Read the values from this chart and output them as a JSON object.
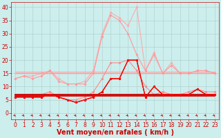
{
  "x": [
    0,
    1,
    2,
    3,
    4,
    5,
    6,
    7,
    8,
    9,
    10,
    11,
    12,
    13,
    14,
    15,
    16,
    17,
    18,
    19,
    20,
    21,
    22,
    23
  ],
  "line_configs": [
    {
      "y": [
        13,
        14,
        14,
        15,
        16,
        13,
        11,
        11,
        12,
        16,
        30,
        38,
        36,
        33,
        40,
        16,
        23,
        15,
        19,
        15,
        15,
        16,
        16,
        15
      ],
      "color": "#ffaaaa",
      "lw": 0.8,
      "marker": "o",
      "ms": 2.0,
      "zorder": 2
    },
    {
      "y": [
        15.5,
        15.5,
        15.5,
        15.5,
        15.5,
        15.5,
        15.5,
        15.5,
        15.5,
        15.5,
        15.5,
        15.5,
        15.5,
        15.5,
        15.5,
        15.5,
        15.5,
        15.5,
        15.5,
        15.5,
        15.5,
        15.5,
        15.5,
        15.5
      ],
      "color": "#ffaaaa",
      "lw": 1.0,
      "marker": null,
      "ms": 0,
      "zorder": 2
    },
    {
      "y": [
        13,
        14,
        13,
        14,
        16,
        12,
        11,
        11,
        11,
        15,
        29,
        37,
        35,
        30,
        22,
        16,
        22,
        15,
        18,
        15,
        15,
        16,
        16,
        15
      ],
      "color": "#ff9999",
      "lw": 0.8,
      "marker": "o",
      "ms": 2.0,
      "zorder": 3
    },
    {
      "y": [
        15,
        15,
        15,
        15,
        15,
        15,
        15,
        15,
        15,
        15,
        15,
        15,
        15,
        15,
        15,
        15,
        15,
        15,
        15,
        15,
        15,
        15,
        15,
        15
      ],
      "color": "#ff9999",
      "lw": 1.0,
      "marker": null,
      "ms": 0,
      "zorder": 3
    },
    {
      "y": [
        6,
        7,
        7,
        7,
        8,
        6,
        5,
        5,
        6,
        8,
        13,
        19,
        19,
        20,
        16,
        10,
        7,
        8,
        7,
        7,
        8,
        9,
        8,
        8
      ],
      "color": "#ff8888",
      "lw": 0.8,
      "marker": "o",
      "ms": 2.0,
      "zorder": 3
    },
    {
      "y": [
        7,
        7,
        7,
        7,
        7,
        7,
        7,
        7,
        7,
        7,
        7,
        7,
        7,
        7,
        7,
        7,
        7,
        7,
        7,
        7,
        7,
        7,
        7,
        7
      ],
      "color": "#ff8888",
      "lw": 1.0,
      "marker": null,
      "ms": 0,
      "zorder": 3
    },
    {
      "y": [
        6,
        6,
        6,
        6,
        7,
        6,
        5,
        4,
        5,
        6,
        8,
        13,
        13,
        20,
        20,
        6,
        10,
        7,
        7,
        7,
        7,
        9,
        7,
        7
      ],
      "color": "#dd0000",
      "lw": 0.9,
      "marker": "o",
      "ms": 2.0,
      "zorder": 5
    },
    {
      "y": [
        7,
        7,
        7,
        7,
        7,
        7,
        7,
        7,
        7,
        7,
        7,
        7,
        7,
        7,
        7,
        7,
        7,
        7,
        7,
        7,
        7,
        7,
        7,
        7
      ],
      "color": "#cc0000",
      "lw": 1.3,
      "marker": null,
      "ms": 0,
      "zorder": 4
    },
    {
      "y": [
        6,
        6,
        6,
        6,
        7,
        6,
        5,
        4,
        5,
        6,
        8,
        13,
        13,
        20,
        20,
        6,
        10,
        7,
        7,
        7,
        7,
        9,
        7,
        7
      ],
      "color": "#ff0000",
      "lw": 0.9,
      "marker": "o",
      "ms": 2.0,
      "zorder": 5
    },
    {
      "y": [
        6.5,
        6.5,
        6.5,
        6.5,
        6.5,
        6.5,
        6.5,
        6.5,
        6.5,
        6.5,
        6.5,
        6.5,
        6.5,
        6.5,
        6.5,
        6.5,
        6.5,
        6.5,
        6.5,
        6.5,
        6.5,
        6.5,
        6.5,
        6.5
      ],
      "color": "#cc0000",
      "lw": 1.3,
      "marker": null,
      "ms": 0,
      "zorder": 4
    }
  ],
  "xlabel": "Vent moyen/en rafales ( km/h )",
  "xlabel_color": "#cc0000",
  "xlabel_fontsize": 7,
  "xticks": [
    0,
    1,
    2,
    3,
    4,
    5,
    6,
    7,
    8,
    9,
    10,
    11,
    12,
    13,
    14,
    15,
    16,
    17,
    18,
    19,
    20,
    21,
    22,
    23
  ],
  "yticks": [
    0,
    5,
    10,
    15,
    20,
    25,
    30,
    35,
    40
  ],
  "ylim": [
    -2.5,
    42
  ],
  "xlim": [
    -0.5,
    23.5
  ],
  "bg_color": "#cceeed",
  "grid_color": "#aacccc",
  "tick_color": "#cc0000",
  "tick_fontsize": 5.5,
  "figsize": [
    3.2,
    2.0
  ],
  "dpi": 100
}
